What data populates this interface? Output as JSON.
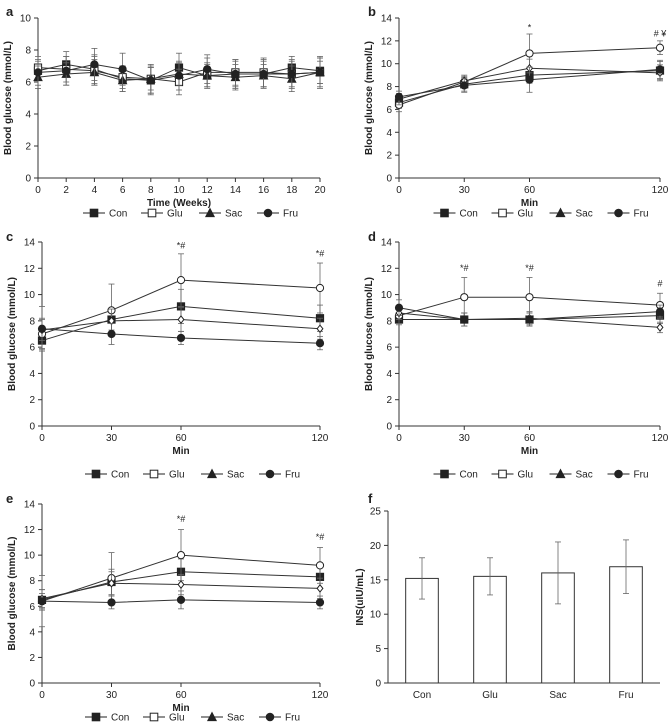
{
  "chart_data": [
    {
      "panel": "a",
      "type": "line",
      "xlabel": "Time (Weeks)",
      "ylabel": "Blood glucose  (mmol/L)",
      "xlim": [
        0,
        20
      ],
      "ylim": [
        0,
        10
      ],
      "xticks": [
        0,
        2,
        4,
        6,
        8,
        10,
        12,
        14,
        16,
        18,
        20
      ],
      "yticks": [
        0,
        2,
        4,
        6,
        8,
        10
      ],
      "x": [
        0,
        2,
        4,
        6,
        8,
        10,
        12,
        14,
        16,
        18,
        20
      ],
      "series": [
        {
          "name": "Con",
          "marker": "square-filled",
          "values": [
            6.7,
            7.1,
            6.8,
            6.2,
            6.1,
            6.9,
            6.4,
            6.5,
            6.5,
            6.9,
            6.7
          ],
          "err": [
            0.6,
            0.8,
            0.9,
            0.8,
            0.8,
            0.9,
            0.7,
            0.8,
            0.8,
            0.7,
            0.8
          ]
        },
        {
          "name": "Glu",
          "marker": "square-open",
          "values": [
            6.9,
            6.8,
            6.7,
            6.3,
            6.2,
            6.0,
            6.6,
            6.6,
            6.6,
            6.5,
            6.6
          ],
          "err": [
            0.7,
            0.8,
            0.9,
            0.7,
            0.9,
            0.8,
            0.9,
            0.8,
            0.9,
            0.8,
            0.9
          ]
        },
        {
          "name": "Sac",
          "marker": "triangle-filled",
          "values": [
            6.3,
            6.5,
            6.6,
            6.1,
            6.2,
            6.5,
            6.4,
            6.3,
            6.4,
            6.2,
            6.6
          ],
          "err": [
            0.7,
            0.7,
            0.8,
            0.7,
            0.7,
            0.7,
            0.8,
            0.8,
            0.7,
            0.8,
            0.7
          ]
        },
        {
          "name": "Fru",
          "marker": "circle-filled",
          "values": [
            6.6,
            6.7,
            7.1,
            6.8,
            6.1,
            6.4,
            6.8,
            6.5,
            6.5,
            6.5,
            6.6
          ],
          "err": [
            0.8,
            0.9,
            1.0,
            1.0,
            0.9,
            0.9,
            0.9,
            0.9,
            0.9,
            0.9,
            1.0
          ]
        }
      ],
      "annotations": []
    },
    {
      "panel": "b",
      "type": "line",
      "xlabel": "Min",
      "ylabel": "Blood glucose  (mmol/L)",
      "xlim": [
        0,
        120
      ],
      "ylim": [
        0,
        14
      ],
      "xticks": [
        0,
        30,
        60,
        120
      ],
      "yticks": [
        0,
        2,
        4,
        6,
        8,
        10,
        12,
        14
      ],
      "x": [
        0,
        30,
        60,
        120
      ],
      "series": [
        {
          "name": "Con",
          "marker": "square-filled",
          "values": [
            6.6,
            8.2,
            9.0,
            9.4
          ],
          "err": [
            0.5,
            0.6,
            0.7,
            0.8
          ]
        },
        {
          "name": "Glu",
          "marker": "circle-open",
          "values": [
            6.4,
            8.4,
            10.9,
            11.4
          ],
          "err": [
            0.6,
            0.5,
            1.7,
            0.6
          ]
        },
        {
          "name": "Sac",
          "marker": "diamond-open",
          "values": [
            6.9,
            8.5,
            9.6,
            9.2
          ],
          "err": [
            0.5,
            0.5,
            0.8,
            0.7
          ]
        },
        {
          "name": "Fru",
          "marker": "circle-filled",
          "values": [
            7.1,
            8.1,
            8.6,
            9.5
          ],
          "err": [
            0.5,
            0.6,
            1.1,
            0.8
          ]
        }
      ],
      "annotations": [
        {
          "x": 60,
          "y": 12.9,
          "text": "*"
        },
        {
          "x": 120,
          "y": 12.4,
          "text": "# ¥"
        }
      ]
    },
    {
      "panel": "c",
      "type": "line",
      "xlabel": "Min",
      "ylabel": "Blood glucose  (mmol/L)",
      "xlim": [
        0,
        120
      ],
      "ylim": [
        0,
        14
      ],
      "xticks": [
        0,
        30,
        60,
        120
      ],
      "yticks": [
        0,
        2,
        4,
        6,
        8,
        10,
        12,
        14
      ],
      "x": [
        0,
        30,
        60,
        120
      ],
      "series": [
        {
          "name": "Con",
          "marker": "square-filled",
          "values": [
            6.5,
            8.1,
            9.1,
            8.2
          ],
          "err": [
            0.6,
            0.8,
            1.3,
            1.0
          ]
        },
        {
          "name": "Glu",
          "marker": "circle-open",
          "values": [
            7.0,
            8.8,
            11.1,
            10.5
          ],
          "err": [
            1.2,
            2.0,
            2.0,
            1.9
          ]
        },
        {
          "name": "Sac",
          "marker": "diamond-open",
          "values": [
            7.3,
            8.0,
            8.1,
            7.4
          ],
          "err": [
            0.8,
            0.9,
            0.9,
            0.8
          ]
        },
        {
          "name": "Fru",
          "marker": "circle-filled",
          "values": [
            7.4,
            7.0,
            6.7,
            6.3
          ],
          "err": [
            1.7,
            0.8,
            0.5,
            0.5
          ]
        }
      ],
      "annotations": [
        {
          "x": 60,
          "y": 13.5,
          "text": "*#"
        },
        {
          "x": 120,
          "y": 12.9,
          "text": "*#"
        }
      ]
    },
    {
      "panel": "d",
      "type": "line",
      "xlabel": "Min",
      "ylabel": "Blood glucose  (mmol/L)",
      "xlim": [
        0,
        120
      ],
      "ylim": [
        0,
        14
      ],
      "xticks": [
        0,
        30,
        60,
        120
      ],
      "yticks": [
        0,
        2,
        4,
        6,
        8,
        10,
        12,
        14
      ],
      "x": [
        0,
        30,
        60,
        120
      ],
      "series": [
        {
          "name": "Con",
          "marker": "square-filled",
          "values": [
            8.1,
            8.1,
            8.1,
            8.4
          ],
          "err": [
            0.4,
            0.5,
            0.5,
            0.6
          ]
        },
        {
          "name": "Glu",
          "marker": "circle-open",
          "values": [
            8.4,
            9.8,
            9.8,
            9.2
          ],
          "err": [
            0.6,
            1.5,
            1.5,
            0.9
          ]
        },
        {
          "name": "Sac",
          "marker": "diamond-open",
          "values": [
            8.6,
            8.1,
            8.2,
            7.5
          ],
          "err": [
            0.5,
            0.5,
            0.5,
            0.4
          ]
        },
        {
          "name": "Fru",
          "marker": "circle-filled",
          "values": [
            9.0,
            8.1,
            8.1,
            8.7
          ],
          "err": [
            0.6,
            0.5,
            0.5,
            0.5
          ]
        }
      ],
      "annotations": [
        {
          "x": 30,
          "y": 11.8,
          "text": "*#"
        },
        {
          "x": 60,
          "y": 11.8,
          "text": "*#"
        },
        {
          "x": 120,
          "y": 10.6,
          "text": "#"
        }
      ]
    },
    {
      "panel": "e",
      "type": "line",
      "xlabel": "Min",
      "ylabel": "Blood glucose  (mmol/L)",
      "xlim": [
        0,
        120
      ],
      "ylim": [
        0,
        14
      ],
      "xticks": [
        0,
        30,
        60,
        120
      ],
      "yticks": [
        0,
        2,
        4,
        6,
        8,
        10,
        12,
        14
      ],
      "x": [
        0,
        30,
        60,
        120
      ],
      "series": [
        {
          "name": "Con",
          "marker": "square-filled",
          "values": [
            6.5,
            7.9,
            8.7,
            8.3
          ],
          "err": [
            0.8,
            1.0,
            1.0,
            0.9
          ]
        },
        {
          "name": "Glu",
          "marker": "circle-open",
          "values": [
            6.4,
            8.2,
            10.0,
            9.2
          ],
          "err": [
            2.0,
            2.0,
            2.0,
            1.4
          ]
        },
        {
          "name": "Sac",
          "marker": "diamond-open",
          "values": [
            6.6,
            7.8,
            7.7,
            7.4
          ],
          "err": [
            0.7,
            0.9,
            0.8,
            0.8
          ]
        },
        {
          "name": "Fru",
          "marker": "circle-filled",
          "values": [
            6.4,
            6.3,
            6.5,
            6.3
          ],
          "err": [
            0.6,
            0.5,
            0.7,
            0.5
          ]
        }
      ],
      "annotations": [
        {
          "x": 60,
          "y": 12.6,
          "text": "*#"
        },
        {
          "x": 120,
          "y": 11.2,
          "text": "*#"
        }
      ]
    },
    {
      "panel": "f",
      "type": "bar",
      "xlabel": "",
      "ylabel": "INS(uIU/mL)",
      "ylim": [
        0,
        25
      ],
      "yticks": [
        0,
        5,
        10,
        15,
        20,
        25
      ],
      "categories": [
        "Con",
        "Glu",
        "Sac",
        "Fru"
      ],
      "values": [
        15.2,
        15.5,
        16.0,
        16.9
      ],
      "err": [
        3.0,
        2.7,
        4.5,
        3.9
      ],
      "annotations": []
    }
  ],
  "legend": {
    "items": [
      {
        "label": "Con",
        "marker": "square-filled"
      },
      {
        "label": "Glu",
        "marker": "square-open"
      },
      {
        "label": "Sac",
        "marker": "triangle-filled"
      },
      {
        "label": "Fru",
        "marker": "circle-filled"
      }
    ]
  }
}
